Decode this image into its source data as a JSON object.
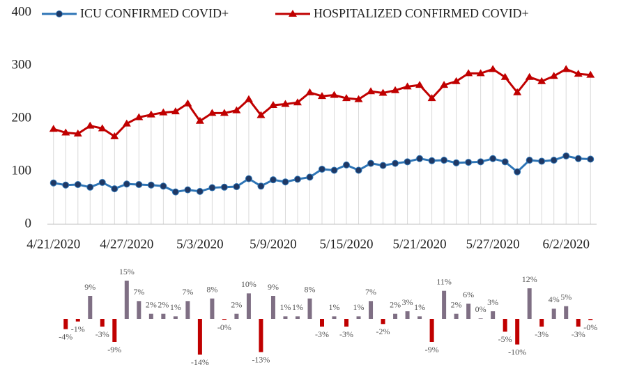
{
  "chart_data": [
    {
      "type": "line",
      "categories": [
        "4/21/2020",
        null,
        null,
        null,
        null,
        null,
        "4/27/2020",
        null,
        null,
        null,
        null,
        null,
        "5/3/2020",
        null,
        null,
        null,
        null,
        null,
        "5/9/2020",
        null,
        null,
        null,
        null,
        null,
        "5/15/2020",
        null,
        null,
        null,
        null,
        null,
        "5/21/2020",
        null,
        null,
        null,
        null,
        null,
        "5/27/2020",
        null,
        null,
        null,
        null,
        null,
        "6/2/2020",
        null,
        null
      ],
      "series": [
        {
          "name": "ICU CONFIRMED COVID+",
          "color": "#2e75b6",
          "marker_color": "#1f3864",
          "values": [
            78,
            74,
            75,
            70,
            79,
            67,
            76,
            75,
            74,
            72,
            61,
            65,
            62,
            69,
            70,
            71,
            86,
            72,
            84,
            80,
            85,
            89,
            104,
            102,
            112,
            102,
            115,
            111,
            115,
            118,
            124,
            120,
            121,
            116,
            117,
            118,
            124,
            118,
            99,
            121,
            119,
            121,
            129,
            124,
            123
          ]
        },
        {
          "name": "HOSPITALIZED CONFIRMED COVID+",
          "color": "#c00000",
          "marker_color": "#c00000",
          "values": [
            180,
            173,
            171,
            186,
            181,
            166,
            190,
            202,
            207,
            211,
            213,
            228,
            195,
            210,
            210,
            215,
            236,
            206,
            225,
            227,
            230,
            249,
            242,
            244,
            238,
            236,
            251,
            248,
            253,
            260,
            263,
            238,
            263,
            270,
            285,
            285,
            293,
            278,
            249,
            278,
            270,
            280,
            293,
            284,
            282
          ]
        }
      ],
      "ylim": [
        0,
        400
      ],
      "yticks": [
        0,
        100,
        200,
        300,
        400
      ],
      "drop_lines": true,
      "legend": "top"
    },
    {
      "type": "bar",
      "color": "#7f6f84",
      "negative_color": "#c00000",
      "values": [
        -4,
        -1,
        9,
        -3,
        -9,
        15,
        7,
        2,
        2,
        1,
        7,
        -14,
        8,
        -0.3,
        2,
        10,
        -13,
        9,
        1,
        1,
        8,
        -3,
        1,
        -3,
        1,
        7,
        -2,
        2,
        3,
        1,
        -9,
        11,
        2,
        6,
        0.2,
        3,
        -5,
        -10,
        12,
        -3,
        4,
        5,
        -3,
        -0.4
      ],
      "value_labels": [
        "-4%",
        "-1%",
        "9%",
        "-3%",
        "-9%",
        "15%",
        "7%",
        "2%",
        "2%",
        "1%",
        "7%",
        "-14%",
        "8%",
        "-0%",
        "2%",
        "10%",
        "-13%",
        "9%",
        "1%",
        "1%",
        "8%",
        "-3%",
        "1%",
        "-3%",
        "1%",
        "7%",
        "-2%",
        "2%",
        "3%",
        "1%",
        "-9%",
        "11%",
        "2%",
        "6%",
        "0%",
        "3%",
        "-5%",
        "-10%",
        "12%",
        "-3%",
        "4%",
        "5%",
        "-3%",
        "-0%"
      ]
    }
  ]
}
